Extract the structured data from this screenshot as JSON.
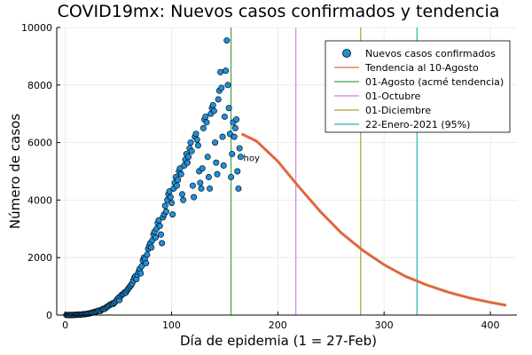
{
  "chart_data": {
    "type": "scatter",
    "title": "COVID19mx: Nuevos casos confirmados y tendencia",
    "xlabel": "Día de epidemia (1 = 27-Feb)",
    "ylabel": "Número de casos",
    "xlim": [
      -8,
      425
    ],
    "ylim": [
      0,
      10000
    ],
    "xticks": [
      0,
      100,
      200,
      300,
      400
    ],
    "yticks": [
      0,
      2000,
      4000,
      6000,
      8000,
      10000
    ],
    "grid": true,
    "legend_position": "top-right",
    "annotation": {
      "text": "hoy",
      "x": 166,
      "y": 5350
    },
    "series": [
      {
        "name": "Nuevos casos confirmados",
        "kind": "scatter",
        "color": "#1f8fd6",
        "points": [
          [
            1,
            2
          ],
          [
            2,
            1
          ],
          [
            3,
            3
          ],
          [
            4,
            2
          ],
          [
            5,
            4
          ],
          [
            6,
            3
          ],
          [
            7,
            5
          ],
          [
            8,
            4
          ],
          [
            9,
            6
          ],
          [
            10,
            8
          ],
          [
            11,
            10
          ],
          [
            12,
            12
          ],
          [
            13,
            15
          ],
          [
            14,
            16
          ],
          [
            15,
            20
          ],
          [
            16,
            25
          ],
          [
            17,
            30
          ],
          [
            18,
            28
          ],
          [
            19,
            35
          ],
          [
            20,
            40
          ],
          [
            21,
            45
          ],
          [
            22,
            50
          ],
          [
            23,
            60
          ],
          [
            24,
            70
          ],
          [
            25,
            80
          ],
          [
            26,
            90
          ],
          [
            27,
            100
          ],
          [
            28,
            110
          ],
          [
            29,
            120
          ],
          [
            30,
            130
          ],
          [
            31,
            150
          ],
          [
            32,
            160
          ],
          [
            33,
            140
          ],
          [
            34,
            180
          ],
          [
            35,
            200
          ],
          [
            36,
            220
          ],
          [
            37,
            210
          ],
          [
            38,
            250
          ],
          [
            39,
            280
          ],
          [
            40,
            300
          ],
          [
            41,
            330
          ],
          [
            42,
            350
          ],
          [
            43,
            380
          ],
          [
            44,
            400
          ],
          [
            45,
            380
          ],
          [
            46,
            420
          ],
          [
            47,
            460
          ],
          [
            48,
            500
          ],
          [
            49,
            550
          ],
          [
            50,
            600
          ],
          [
            51,
            520
          ],
          [
            52,
            650
          ],
          [
            53,
            700
          ],
          [
            54,
            720
          ],
          [
            55,
            750
          ],
          [
            56,
            800
          ],
          [
            57,
            780
          ],
          [
            58,
            850
          ],
          [
            59,
            900
          ],
          [
            60,
            950
          ],
          [
            61,
            1000
          ],
          [
            62,
            1050
          ],
          [
            63,
            1100
          ],
          [
            64,
            1200
          ],
          [
            65,
            1300
          ],
          [
            66,
            1350
          ],
          [
            67,
            1250
          ],
          [
            68,
            1400
          ],
          [
            69,
            1500
          ],
          [
            70,
            1600
          ],
          [
            71,
            1450
          ],
          [
            72,
            1700
          ],
          [
            73,
            1900
          ],
          [
            74,
            2000
          ],
          [
            75,
            1950
          ],
          [
            76,
            1800
          ],
          [
            77,
            2100
          ],
          [
            78,
            2300
          ],
          [
            79,
            2400
          ],
          [
            80,
            2500
          ],
          [
            81,
            2350
          ],
          [
            82,
            2600
          ],
          [
            83,
            2800
          ],
          [
            84,
            2900
          ],
          [
            85,
            2700
          ],
          [
            86,
            3000
          ],
          [
            87,
            3200
          ],
          [
            88,
            3300
          ],
          [
            89,
            3100
          ],
          [
            90,
            2800
          ],
          [
            91,
            2500
          ],
          [
            92,
            3400
          ],
          [
            93,
            3500
          ],
          [
            94,
            3800
          ],
          [
            95,
            3600
          ],
          [
            96,
            4000
          ],
          [
            97,
            4200
          ],
          [
            98,
            4300
          ],
          [
            99,
            4100
          ],
          [
            100,
            3900
          ],
          [
            101,
            3500
          ],
          [
            102,
            4400
          ],
          [
            103,
            4600
          ],
          [
            104,
            4800
          ],
          [
            105,
            4500
          ],
          [
            106,
            4700
          ],
          [
            107,
            5000
          ],
          [
            108,
            5100
          ],
          [
            109,
            4900
          ],
          [
            110,
            4200
          ],
          [
            111,
            4000
          ],
          [
            112,
            5200
          ],
          [
            113,
            5400
          ],
          [
            114,
            5600
          ],
          [
            115,
            5300
          ],
          [
            116,
            5500
          ],
          [
            117,
            5800
          ],
          [
            118,
            6000
          ],
          [
            119,
            5700
          ],
          [
            120,
            4500
          ],
          [
            121,
            4100
          ],
          [
            122,
            6200
          ],
          [
            123,
            6300
          ],
          [
            124,
            6100
          ],
          [
            125,
            5900
          ],
          [
            126,
            5000
          ],
          [
            127,
            4600
          ],
          [
            128,
            4400
          ],
          [
            129,
            5100
          ],
          [
            130,
            6500
          ],
          [
            131,
            6800
          ],
          [
            132,
            6900
          ],
          [
            133,
            6700
          ],
          [
            134,
            5500
          ],
          [
            135,
            4800
          ],
          [
            136,
            4400
          ],
          [
            137,
            7000
          ],
          [
            138,
            7200
          ],
          [
            139,
            7300
          ],
          [
            140,
            7100
          ],
          [
            141,
            6000
          ],
          [
            142,
            5300
          ],
          [
            143,
            4900
          ],
          [
            144,
            7500
          ],
          [
            145,
            7800
          ],
          [
            146,
            8450
          ],
          [
            147,
            7900
          ],
          [
            148,
            6200
          ],
          [
            149,
            5200
          ],
          [
            150,
            6900
          ],
          [
            151,
            8500
          ],
          [
            152,
            9550
          ],
          [
            153,
            8000
          ],
          [
            154,
            7200
          ],
          [
            155,
            6300
          ],
          [
            156,
            4800
          ],
          [
            157,
            5600
          ],
          [
            158,
            6700
          ],
          [
            159,
            6200
          ],
          [
            160,
            6500
          ],
          [
            161,
            6800
          ],
          [
            162,
            5000
          ],
          [
            163,
            4400
          ],
          [
            164,
            5800
          ],
          [
            165,
            5500
          ]
        ]
      },
      {
        "name": "Tendencia al 10-Agosto",
        "kind": "line",
        "color": "#e0663f",
        "points": [
          [
            166,
            6300
          ],
          [
            180,
            6050
          ],
          [
            200,
            5350
          ],
          [
            220,
            4450
          ],
          [
            240,
            3600
          ],
          [
            260,
            2850
          ],
          [
            280,
            2250
          ],
          [
            300,
            1750
          ],
          [
            320,
            1350
          ],
          [
            340,
            1050
          ],
          [
            360,
            800
          ],
          [
            380,
            600
          ],
          [
            400,
            440
          ],
          [
            415,
            340
          ]
        ]
      },
      {
        "name": "01-Agosto (acmé tendencia)",
        "kind": "vline",
        "color": "#3da64a",
        "x": 156
      },
      {
        "name": "01-Octubre",
        "kind": "vline",
        "color": "#c784d8",
        "x": 217
      },
      {
        "name": "01-Diciembre",
        "kind": "vline",
        "color": "#a8a22e",
        "x": 278
      },
      {
        "name": "22-Enero-2021 (95%)",
        "kind": "vline",
        "color": "#20b8b0",
        "x": 331
      }
    ]
  }
}
